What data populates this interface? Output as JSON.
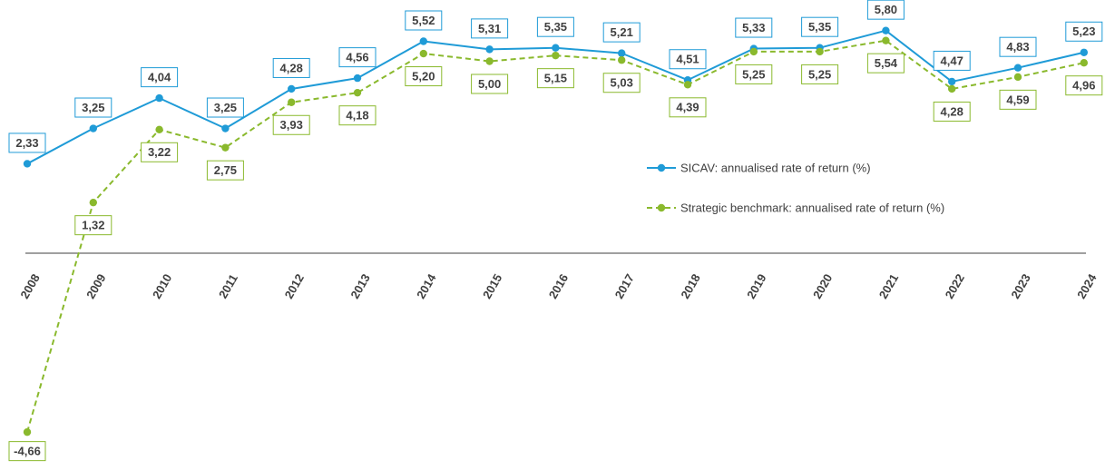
{
  "chart_data": {
    "type": "line",
    "x": [
      "2008",
      "2009",
      "2010",
      "2011",
      "2012",
      "2013",
      "2014",
      "2015",
      "2016",
      "2017",
      "2018",
      "2019",
      "2020",
      "2021",
      "2022",
      "2023",
      "2024"
    ],
    "ylim": [
      -5,
      6.5
    ],
    "grid": false,
    "legend_position": "right",
    "series": [
      {
        "name": "SICAV: annualised rate of return (%)",
        "color": "#1f9bd7",
        "style": "solid",
        "values": [
          2.33,
          3.25,
          4.04,
          3.25,
          4.28,
          4.56,
          5.52,
          5.31,
          5.35,
          5.21,
          4.51,
          5.33,
          5.35,
          5.8,
          4.47,
          4.83,
          5.23
        ],
        "labels": [
          "2,33",
          "3,25",
          "4,04",
          "3,25",
          "4,28",
          "4,56",
          "5,52",
          "5,31",
          "5,35",
          "5,21",
          "4,51",
          "5,33",
          "5,35",
          "5,80",
          "4,47",
          "4,83",
          "5,23"
        ]
      },
      {
        "name": "Strategic benchmark: annualised rate of return (%)",
        "color": "#8ab92d",
        "style": "dashed",
        "values": [
          -4.66,
          1.32,
          3.22,
          2.75,
          3.93,
          4.18,
          5.2,
          5.0,
          5.15,
          5.03,
          4.39,
          5.25,
          5.25,
          5.54,
          4.28,
          4.59,
          4.96
        ],
        "labels": [
          "-4,66",
          "1,32",
          "3,22",
          "2,75",
          "3,93",
          "4,18",
          "5,20",
          "5,00",
          "5,15",
          "5,03",
          "4,39",
          "5,25",
          "5,25",
          "5,54",
          "4,28",
          "4,59",
          "4,96"
        ]
      }
    ]
  }
}
